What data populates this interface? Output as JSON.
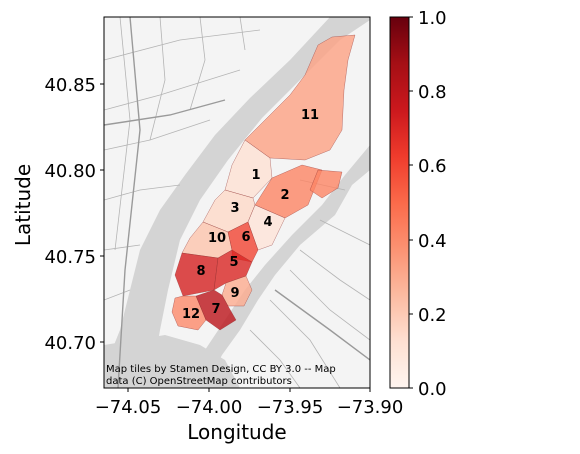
{
  "map": {
    "xlabel": "Longitude",
    "ylabel": "Latitude",
    "attribution_line1": "Map tiles by Stamen Design, CC BY 3.0 -- Map",
    "attribution_line2": "data (C) OpenStreetMap contributors",
    "xticks": [
      "−74.05",
      "−74.00",
      "−73.95",
      "−73.90"
    ],
    "yticks": [
      "40.70",
      "40.75",
      "40.80",
      "40.85"
    ],
    "colormap": "Reds",
    "colors": {
      "water": "#d4d4d4",
      "land": "#f4f4f4",
      "road": "#b4b4b4",
      "region_edge": "#8c2d2d"
    }
  },
  "colorbar": {
    "ticks": [
      "0.0",
      "0.2",
      "0.4",
      "0.6",
      "0.8",
      "1.0"
    ],
    "min": 0,
    "max": 1
  },
  "regions": [
    {
      "id": "1",
      "value": 0.12
    },
    {
      "id": "2",
      "value": 0.42
    },
    {
      "id": "3",
      "value": 0.15
    },
    {
      "id": "4",
      "value": 0.1
    },
    {
      "id": "5",
      "value": 0.7
    },
    {
      "id": "6",
      "value": 0.6
    },
    {
      "id": "7",
      "value": 0.8
    },
    {
      "id": "8",
      "value": 0.72
    },
    {
      "id": "9",
      "value": 0.3
    },
    {
      "id": "10",
      "value": 0.22
    },
    {
      "id": "11",
      "value": 0.33
    },
    {
      "id": "12",
      "value": 0.4
    }
  ]
}
